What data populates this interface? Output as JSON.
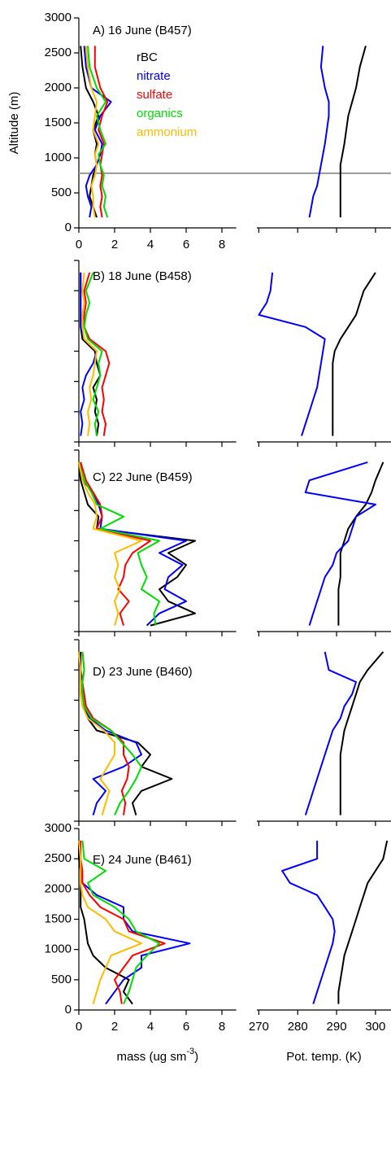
{
  "chart_data": [
    {
      "type": "line",
      "title": "A) 16 June (B457)",
      "ylabel": "Altitude (m)",
      "tick_labels": true,
      "hline": 780,
      "hline_color": "#999999",
      "y": [
        150,
        300,
        450,
        600,
        750,
        900,
        1050,
        1200,
        1400,
        1600,
        1800,
        2000,
        2300,
        2600
      ],
      "series": [
        {
          "name": "rBC",
          "color": "#000000",
          "values": [
            1.0,
            0.8,
            0.6,
            0.7,
            0.8,
            1.0,
            0.9,
            1.0,
            0.8,
            1.1,
            0.8,
            0.4,
            0.2,
            0.1
          ]
        },
        {
          "name": "nitrate",
          "color": "#0000ff",
          "values": [
            0.6,
            0.7,
            0.5,
            0.4,
            0.6,
            1.0,
            1.2,
            1.3,
            0.9,
            1.2,
            1.8,
            0.7,
            0.4,
            0.3
          ]
        },
        {
          "name": "sulfate",
          "color": "#ff0000",
          "values": [
            1.3,
            1.2,
            1.3,
            1.2,
            1.3,
            1.2,
            1.3,
            1.4,
            1.1,
            1.3,
            1.6,
            1.2,
            0.9,
            0.9
          ]
        },
        {
          "name": "organics",
          "color": "#00dd00",
          "values": [
            1.6,
            1.4,
            1.5,
            1.3,
            1.4,
            1.2,
            1.1,
            1.5,
            1.2,
            1.0,
            1.5,
            1.0,
            0.6,
            0.5
          ]
        },
        {
          "name": "ammonium",
          "color": "#ffbb00",
          "values": [
            0.9,
            0.8,
            0.8,
            0.7,
            0.9,
            1.0,
            0.9,
            1.1,
            0.8,
            0.9,
            1.0,
            0.7,
            0.5,
            0.4
          ]
        }
      ],
      "xlim": [
        0,
        8.8
      ],
      "xticks": [
        0,
        2,
        4,
        6,
        8
      ],
      "ylim": [
        0,
        3000
      ],
      "yticks": [
        0,
        500,
        1000,
        1500,
        2000,
        2500,
        3000
      ]
    },
    {
      "type": "line",
      "tick_labels": false,
      "y": [
        150,
        300,
        450,
        600,
        750,
        900,
        1050,
        1200,
        1400,
        1600,
        1800,
        2000,
        2300,
        2600
      ],
      "series": [
        {
          "color": "#000000",
          "values": [
            291,
            291,
            291,
            291,
            291,
            291,
            291.5,
            292,
            292.5,
            293,
            294,
            295,
            296,
            297.5
          ]
        },
        {
          "color": "#0000ff",
          "values": [
            283,
            283.5,
            284,
            285,
            285.5,
            286,
            286.5,
            287,
            287.5,
            288,
            288,
            287,
            286,
            286.5
          ]
        }
      ],
      "xlim": [
        269.5,
        304
      ],
      "xticks": [
        270,
        280,
        290,
        300
      ],
      "ylim": [
        0,
        3000
      ]
    },
    {
      "type": "line",
      "title": "B) 18 June (B458)",
      "tick_labels": false,
      "y": [
        100,
        300,
        500,
        700,
        900,
        1100,
        1300,
        1500,
        1700,
        1900,
        2100,
        2300,
        2500,
        2800
      ],
      "series": [
        {
          "color": "#000000",
          "values": [
            1.0,
            1.1,
            0.9,
            1.0,
            0.8,
            1.2,
            1.0,
            0.9,
            0.2,
            0.1,
            0.1,
            0.1,
            0.1,
            0.1
          ]
        },
        {
          "color": "#0000ff",
          "values": [
            0.1,
            0.2,
            0.1,
            0.3,
            0.2,
            0.4,
            0.8,
            1.0,
            0.3,
            0.1,
            0.1,
            0.1,
            0.1,
            0.1
          ]
        },
        {
          "color": "#ff0000",
          "values": [
            1.4,
            1.5,
            1.3,
            1.4,
            1.3,
            1.5,
            1.7,
            1.5,
            0.6,
            0.3,
            0.3,
            0.4,
            0.3,
            0.6
          ]
        },
        {
          "color": "#00dd00",
          "values": [
            1.0,
            0.9,
            1.1,
            0.8,
            1.0,
            1.2,
            1.1,
            1.3,
            0.5,
            0.3,
            0.4,
            0.6,
            0.4,
            0.8
          ]
        },
        {
          "color": "#ffbb00",
          "values": [
            0.5,
            0.6,
            0.5,
            0.7,
            0.6,
            0.8,
            0.9,
            1.0,
            0.3,
            0.2,
            0.2,
            0.3,
            0.2,
            0.3
          ]
        }
      ],
      "xlim": [
        0,
        8.8
      ],
      "xticks": [
        0,
        2,
        4,
        6,
        8
      ],
      "ylim": [
        0,
        3000
      ],
      "yticks": [
        0,
        500,
        1000,
        1500,
        2000,
        2500,
        3000
      ]
    },
    {
      "type": "line",
      "tick_labels": false,
      "y": [
        100,
        300,
        500,
        700,
        900,
        1100,
        1300,
        1500,
        1700,
        1900,
        2100,
        2300,
        2500,
        2800
      ],
      "series": [
        {
          "color": "#000000",
          "values": [
            289,
            289,
            289,
            289,
            289,
            289,
            289,
            289.5,
            291,
            293,
            295,
            296,
            297,
            300
          ]
        },
        {
          "color": "#0000ff",
          "values": [
            281,
            282,
            283,
            284,
            285,
            285.5,
            286,
            286.5,
            287,
            282,
            270,
            272,
            273,
            273.5
          ]
        }
      ],
      "xlim": [
        269.5,
        304
      ],
      "xticks": [
        270,
        280,
        290,
        300
      ],
      "ylim": [
        0,
        3000
      ]
    },
    {
      "type": "line",
      "title": "C) 22 June (B459)",
      "tick_labels": false,
      "y": [
        100,
        300,
        500,
        700,
        900,
        1100,
        1300,
        1500,
        1700,
        1900,
        2100,
        2300,
        2500,
        2800
      ],
      "series": [
        {
          "color": "#000000",
          "values": [
            4.0,
            6.5,
            5.0,
            4.5,
            5.5,
            6.0,
            5.0,
            6.5,
            1.0,
            1.1,
            0.5,
            0.3,
            0.1,
            0.0
          ]
        },
        {
          "color": "#0000ff",
          "values": [
            3.8,
            4.5,
            6.0,
            4.8,
            5.0,
            5.8,
            4.5,
            6.0,
            1.2,
            1.3,
            1.1,
            0.8,
            0.2,
            0.1
          ]
        },
        {
          "color": "#ff0000",
          "values": [
            2.5,
            2.3,
            2.8,
            2.2,
            2.5,
            2.6,
            3.0,
            4.0,
            1.0,
            1.3,
            1.2,
            0.8,
            0.4,
            0.1
          ]
        },
        {
          "color": "#00dd00",
          "values": [
            4.3,
            4.2,
            4.5,
            3.5,
            3.8,
            3.5,
            3.3,
            4.5,
            1.2,
            2.5,
            1.0,
            0.7,
            0.3,
            0.0
          ]
        },
        {
          "color": "#ffbb00",
          "values": [
            2.0,
            2.2,
            2.0,
            2.3,
            2.0,
            2.2,
            2.0,
            3.5,
            0.8,
            1.0,
            0.9,
            0.5,
            0.2,
            0.0
          ]
        }
      ],
      "xlim": [
        0,
        8.8
      ],
      "xticks": [
        0,
        2,
        4,
        6,
        8
      ],
      "ylim": [
        0,
        3000
      ],
      "yticks": [
        0,
        500,
        1000,
        1500,
        2000,
        2500,
        3000
      ]
    },
    {
      "type": "line",
      "tick_labels": false,
      "y": [
        100,
        300,
        500,
        700,
        900,
        1100,
        1300,
        1500,
        1700,
        1900,
        2100,
        2300,
        2500,
        2800
      ],
      "series": [
        {
          "color": "#000000",
          "values": [
            290.5,
            290.5,
            290.5,
            290.5,
            291,
            291,
            291,
            292,
            293,
            295,
            297.5,
            299,
            300,
            302
          ]
        },
        {
          "color": "#0000ff",
          "values": [
            283,
            284,
            285,
            286,
            287,
            289,
            290,
            293,
            294,
            295,
            300,
            282,
            283,
            298
          ]
        }
      ],
      "xlim": [
        269.5,
        304
      ],
      "xticks": [
        270,
        280,
        290,
        300
      ],
      "ylim": [
        0,
        3000
      ]
    },
    {
      "type": "line",
      "title": "D) 23 June (B460)",
      "tick_labels": false,
      "y": [
        100,
        300,
        500,
        700,
        900,
        1100,
        1300,
        1500,
        1700,
        1900,
        2100,
        2300,
        2500,
        2800
      ],
      "series": [
        {
          "color": "#000000",
          "values": [
            3.2,
            3.0,
            3.5,
            5.2,
            3.5,
            4.0,
            3.3,
            1.0,
            0.5,
            0.3,
            0.2,
            0.2,
            0.1,
            0.1
          ]
        },
        {
          "color": "#0000ff",
          "values": [
            0.8,
            1.0,
            1.5,
            0.8,
            2.5,
            3.5,
            3.2,
            1.5,
            0.6,
            0.3,
            0.2,
            0.1,
            0.1,
            0.0
          ]
        },
        {
          "color": "#ff0000",
          "values": [
            2.5,
            2.6,
            2.4,
            2.7,
            2.8,
            2.5,
            2.5,
            1.8,
            0.8,
            0.4,
            0.3,
            0.2,
            0.3,
            0.2
          ]
        },
        {
          "color": "#00dd00",
          "values": [
            2.0,
            2.3,
            2.8,
            3.2,
            3.5,
            3.0,
            2.4,
            1.8,
            0.7,
            0.3,
            0.2,
            0.2,
            0.3,
            0.2
          ]
        },
        {
          "color": "#ffbb00",
          "values": [
            1.3,
            1.5,
            1.7,
            1.2,
            1.6,
            2.0,
            2.0,
            1.4,
            0.5,
            0.2,
            0.1,
            0.1,
            0.1,
            0.0
          ]
        }
      ],
      "xlim": [
        0,
        8.8
      ],
      "xticks": [
        0,
        2,
        4,
        6,
        8
      ],
      "ylim": [
        0,
        3000
      ],
      "yticks": [
        0,
        500,
        1000,
        1500,
        2000,
        2500,
        3000
      ]
    },
    {
      "type": "line",
      "tick_labels": false,
      "y": [
        100,
        300,
        500,
        700,
        900,
        1100,
        1300,
        1500,
        1700,
        1900,
        2100,
        2300,
        2500,
        2800
      ],
      "series": [
        {
          "color": "#000000",
          "values": [
            291,
            291,
            291,
            291,
            291,
            291,
            291.5,
            292,
            293,
            294,
            295,
            296,
            298,
            302
          ]
        },
        {
          "color": "#0000ff",
          "values": [
            282,
            283,
            284,
            285,
            286,
            287,
            288,
            289,
            291,
            292,
            294,
            295,
            288,
            287
          ]
        }
      ],
      "xlim": [
        269.5,
        304
      ],
      "xticks": [
        270,
        280,
        290,
        300
      ],
      "ylim": [
        0,
        3000
      ]
    },
    {
      "type": "line",
      "title": "E) 24 June (B461)",
      "tick_labels": true,
      "xlabel": [
        "mass (ug sm",
        "-3",
        ")"
      ],
      "y": [
        100,
        300,
        500,
        700,
        900,
        1100,
        1300,
        1500,
        1700,
        1900,
        2100,
        2300,
        2500,
        2800
      ],
      "series": [
        {
          "color": "#000000",
          "values": [
            3.0,
            2.5,
            2.8,
            1.5,
            0.8,
            0.5,
            0.4,
            0.3,
            0.1,
            0.1,
            0.1,
            0.1,
            0.0,
            0.0
          ]
        },
        {
          "color": "#0000ff",
          "values": [
            1.5,
            2.0,
            2.5,
            3.5,
            3.5,
            6.2,
            3.0,
            2.5,
            2.5,
            1.0,
            0.2,
            0.1,
            0.1,
            0.0
          ]
        },
        {
          "color": "#ff0000",
          "values": [
            2.4,
            2.3,
            2.0,
            2.5,
            3.0,
            4.8,
            2.8,
            2.5,
            1.2,
            0.6,
            0.2,
            0.2,
            0.1,
            0.1
          ]
        },
        {
          "color": "#00dd00",
          "values": [
            2.5,
            2.8,
            3.0,
            3.2,
            3.8,
            4.5,
            3.2,
            2.8,
            2.0,
            0.8,
            0.5,
            1.5,
            0.3,
            0.2
          ]
        },
        {
          "color": "#ffbb00",
          "values": [
            0.8,
            1.0,
            1.2,
            1.5,
            1.8,
            3.5,
            2.0,
            1.5,
            0.5,
            0.2,
            0.1,
            0.1,
            0.1,
            0.0
          ]
        }
      ],
      "xlim": [
        0,
        8.8
      ],
      "xticks": [
        0,
        2,
        4,
        6,
        8
      ],
      "ylim": [
        0,
        3000
      ],
      "yticks": [
        0,
        500,
        1000,
        1500,
        2000,
        2500,
        3000
      ]
    },
    {
      "type": "line",
      "tick_labels": true,
      "xlabel": [
        "Pot. temp. (K)"
      ],
      "y": [
        100,
        300,
        500,
        700,
        900,
        1100,
        1300,
        1500,
        1700,
        1900,
        2100,
        2300,
        2500,
        2800
      ],
      "series": [
        {
          "color": "#000000",
          "values": [
            290.5,
            290.5,
            291,
            291.5,
            292,
            293,
            294,
            295,
            296,
            297,
            298,
            300,
            302,
            303
          ]
        },
        {
          "color": "#0000ff",
          "values": [
            284,
            285,
            286,
            287,
            288,
            289,
            289.5,
            289,
            287,
            285,
            278,
            276,
            285,
            285
          ]
        }
      ],
      "xlim": [
        269.5,
        304
      ],
      "xticks": [
        270,
        280,
        290,
        300
      ],
      "ylim": [
        0,
        3000
      ]
    }
  ]
}
